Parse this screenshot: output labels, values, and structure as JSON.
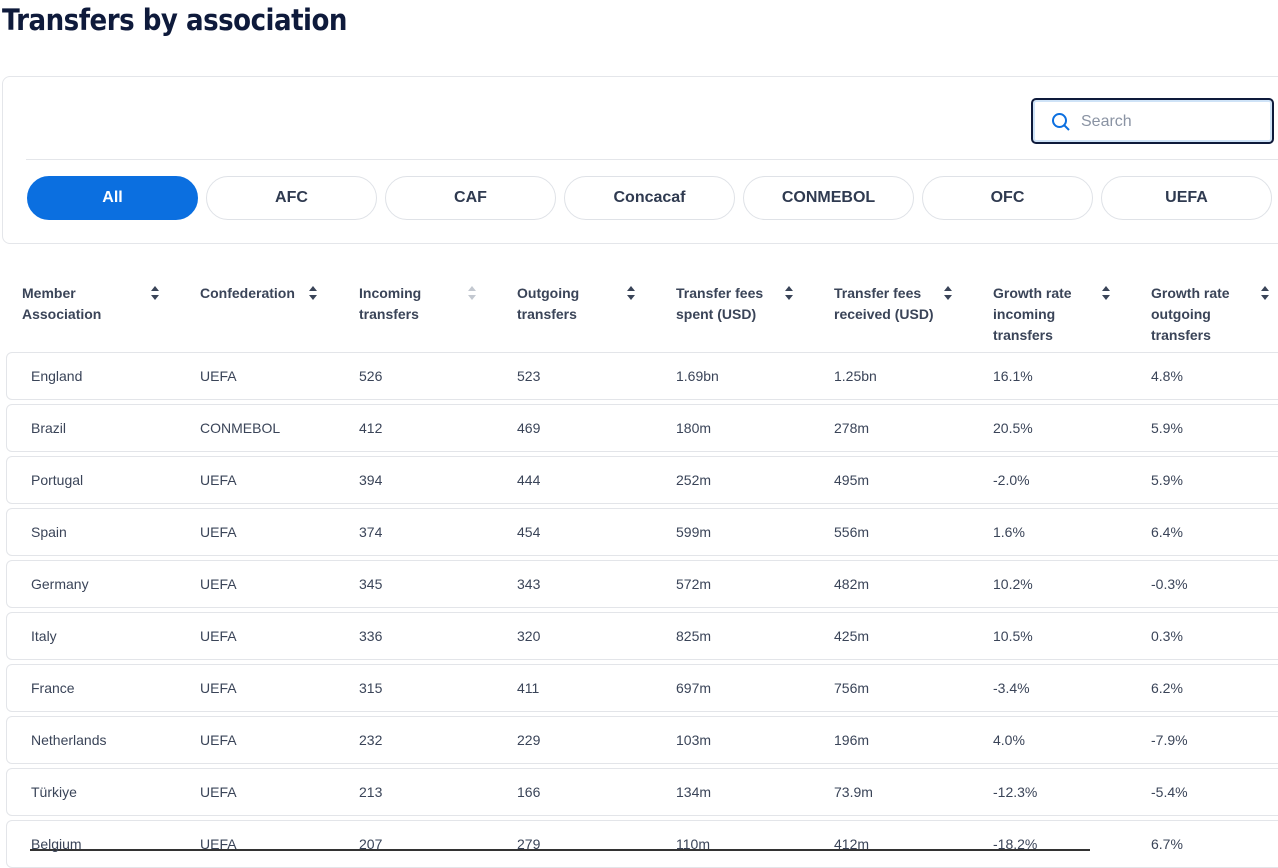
{
  "header": {
    "title": "Transfers by association"
  },
  "search": {
    "placeholder": "Search"
  },
  "filters": [
    "All",
    "AFC",
    "CAF",
    "Concacaf",
    "CONMEBOL",
    "OFC",
    "UEFA"
  ],
  "table": {
    "columns": [
      "Member Association",
      "Confederation",
      "Incoming transfers",
      "Outgoing transfers",
      "Transfer fees spent (USD)",
      "Transfer fees received (USD)",
      "Growth rate incoming transfers",
      "Growth rate outgoing transfers"
    ],
    "rows": [
      [
        "England",
        "UEFA",
        "526",
        "523",
        "1.69bn",
        "1.25bn",
        "16.1%",
        "4.8%"
      ],
      [
        "Brazil",
        "CONMEBOL",
        "412",
        "469",
        "180m",
        "278m",
        "20.5%",
        "5.9%"
      ],
      [
        "Portugal",
        "UEFA",
        "394",
        "444",
        "252m",
        "495m",
        "-2.0%",
        "5.9%"
      ],
      [
        "Spain",
        "UEFA",
        "374",
        "454",
        "599m",
        "556m",
        "1.6%",
        "6.4%"
      ],
      [
        "Germany",
        "UEFA",
        "345",
        "343",
        "572m",
        "482m",
        "10.2%",
        "-0.3%"
      ],
      [
        "Italy",
        "UEFA",
        "336",
        "320",
        "825m",
        "425m",
        "10.5%",
        "0.3%"
      ],
      [
        "France",
        "UEFA",
        "315",
        "411",
        "697m",
        "756m",
        "-3.4%",
        "6.2%"
      ],
      [
        "Netherlands",
        "UEFA",
        "232",
        "229",
        "103m",
        "196m",
        "4.0%",
        "-7.9%"
      ],
      [
        "Türkiye",
        "UEFA",
        "213",
        "166",
        "134m",
        "73.9m",
        "-12.3%",
        "-5.4%"
      ],
      [
        "Belgium",
        "UEFA",
        "207",
        "279",
        "110m",
        "412m",
        "-18.2%",
        "6.7%"
      ]
    ]
  }
}
